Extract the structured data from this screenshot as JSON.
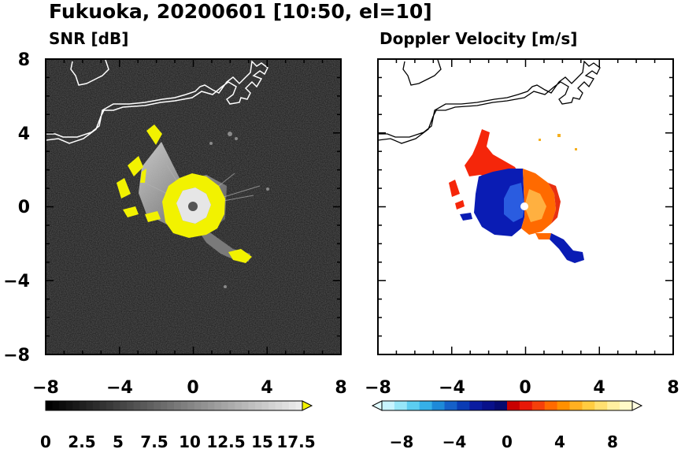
{
  "title": "Fukuoka, 20200601 [10:50, el=10]",
  "panels": [
    {
      "title": "SNR [dB]"
    },
    {
      "title": "Doppler Velocity [m/s]"
    }
  ],
  "axes": {
    "xlim": [
      -8,
      8
    ],
    "ylim": [
      -8,
      8
    ],
    "xticks": [
      "−8",
      "−4",
      "0",
      "4",
      "8"
    ],
    "yticks": [
      "8",
      "4",
      "0",
      "−4",
      "−8"
    ]
  },
  "colorbars": [
    {
      "name": "SNR",
      "range": [
        0,
        19
      ],
      "extend": "max",
      "tick_labels": [
        "0",
        "2.5",
        "5",
        "7.5",
        "10",
        "12.5",
        "15",
        "17.5"
      ]
    },
    {
      "name": "Doppler",
      "range": [
        -10,
        10
      ],
      "extend": "both",
      "tick_labels": [
        "−8",
        "−4",
        "0",
        "4",
        "8"
      ]
    }
  ],
  "colors": {
    "snr_background": "#141414",
    "snr_high": "#f2f200",
    "doppler_negative": "#0a1cb4",
    "doppler_positive": "#ff6a00",
    "doppler_far_positive": "#f5260a",
    "coastline_snr": "#ffffff",
    "coastline_doppler": "#000000"
  },
  "chart_data": [
    {
      "type": "heatmap",
      "title": "SNR [dB]",
      "xlim": [
        -8,
        8
      ],
      "ylim": [
        -8,
        8
      ],
      "colorbar_range": [
        0,
        19
      ],
      "features": [
        {
          "kind": "echo_region",
          "x": [
            -4.2,
            1.6
          ],
          "y": [
            -2.3,
            4.2
          ]
        },
        {
          "kind": "strong_ring",
          "center": [
            0,
            0
          ],
          "radius": 1.4
        },
        {
          "kind": "echo_tail",
          "from": [
            0,
            -1
          ],
          "to": [
            3.1,
            -2.8
          ]
        }
      ]
    },
    {
      "type": "heatmap",
      "title": "Doppler Velocity [m/s]",
      "xlim": [
        -8,
        8
      ],
      "ylim": [
        -8,
        8
      ],
      "colorbar_range": [
        -10,
        10
      ],
      "features": [
        {
          "kind": "approaching_region",
          "side": "west",
          "velocity": -9
        },
        {
          "kind": "receding_region",
          "side": "east",
          "velocity": 5
        }
      ]
    }
  ]
}
